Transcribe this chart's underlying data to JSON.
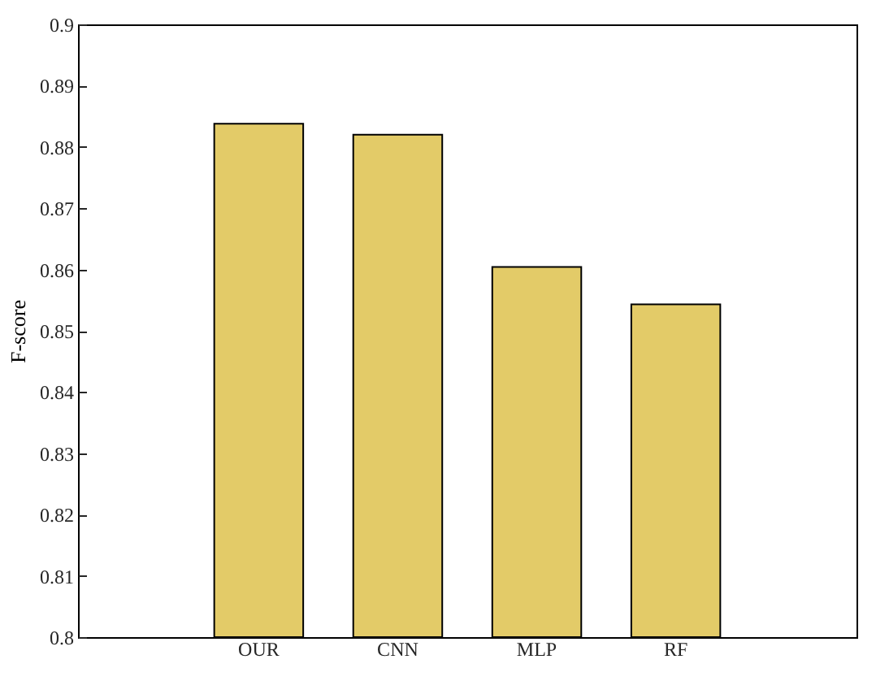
{
  "chart_data": {
    "type": "bar",
    "ylabel": "F-score",
    "categories": [
      "OUR",
      "CNN",
      "MLP",
      "RF"
    ],
    "series": [
      {
        "color": "#e3cb68",
        "values": [
          0.8838,
          0.882,
          0.8604,
          0.8543
        ]
      }
    ],
    "ylim": [
      0.8,
      0.9
    ],
    "yticks": [
      0.8,
      0.81,
      0.82,
      0.83,
      0.84,
      0.85,
      0.86,
      0.87,
      0.88,
      0.89,
      0.9
    ],
    "grid": false
  }
}
